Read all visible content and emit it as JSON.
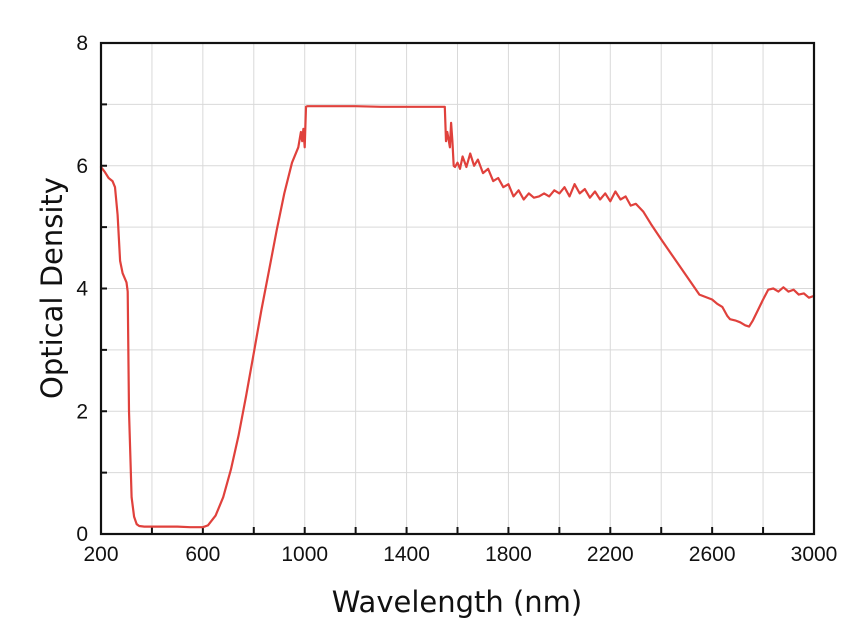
{
  "chart_data": {
    "type": "line",
    "title": "",
    "xlabel": "Wavelength (nm)",
    "ylabel": "Optical Density",
    "xlim": [
      200,
      3000
    ],
    "ylim": [
      0,
      8
    ],
    "x_tick_labels": [
      "200",
      "600",
      "1000",
      "1400",
      "1800",
      "2200",
      "2600",
      "3000"
    ],
    "y_tick_labels": [
      "0",
      "2",
      "4",
      "6",
      "8"
    ],
    "grid": true,
    "legend": "none",
    "line_color": "#e0413c",
    "series": [
      {
        "name": "Optical Density",
        "x": [
          200,
          215,
          230,
          245,
          255,
          265,
          275,
          285,
          295,
          300,
          305,
          310,
          320,
          330,
          340,
          350,
          370,
          400,
          450,
          500,
          550,
          600,
          620,
          650,
          680,
          710,
          740,
          770,
          800,
          830,
          860,
          890,
          920,
          950,
          975,
          985,
          990,
          995,
          1000,
          1005,
          1010,
          1020,
          1100,
          1200,
          1300,
          1400,
          1500,
          1550,
          1555,
          1560,
          1570,
          1575,
          1580,
          1585,
          1590,
          1600,
          1610,
          1620,
          1635,
          1650,
          1665,
          1680,
          1700,
          1720,
          1740,
          1760,
          1780,
          1800,
          1820,
          1840,
          1860,
          1880,
          1900,
          1920,
          1940,
          1960,
          1980,
          2000,
          2020,
          2040,
          2060,
          2080,
          2100,
          2120,
          2140,
          2160,
          2180,
          2200,
          2220,
          2240,
          2260,
          2280,
          2300,
          2330,
          2360,
          2400,
          2450,
          2500,
          2550,
          2600,
          2620,
          2640,
          2660,
          2670,
          2690,
          2710,
          2730,
          2745,
          2760,
          2780,
          2800,
          2820,
          2840,
          2860,
          2880,
          2900,
          2920,
          2940,
          2960,
          2980,
          3000
        ],
        "values": [
          5.98,
          5.9,
          5.8,
          5.75,
          5.65,
          5.2,
          4.45,
          4.25,
          4.15,
          4.1,
          3.95,
          2.0,
          0.6,
          0.28,
          0.16,
          0.13,
          0.12,
          0.12,
          0.12,
          0.12,
          0.11,
          0.11,
          0.14,
          0.3,
          0.6,
          1.05,
          1.6,
          2.25,
          2.95,
          3.65,
          4.3,
          4.95,
          5.55,
          6.05,
          6.3,
          6.55,
          6.4,
          6.6,
          6.3,
          6.96,
          6.97,
          6.97,
          6.97,
          6.97,
          6.96,
          6.96,
          6.96,
          6.96,
          6.4,
          6.55,
          6.3,
          6.7,
          6.4,
          6.0,
          5.98,
          6.05,
          5.95,
          6.15,
          5.98,
          6.2,
          6.0,
          6.1,
          5.88,
          5.95,
          5.75,
          5.8,
          5.65,
          5.7,
          5.5,
          5.6,
          5.45,
          5.55,
          5.48,
          5.5,
          5.55,
          5.5,
          5.6,
          5.55,
          5.65,
          5.5,
          5.7,
          5.55,
          5.62,
          5.48,
          5.58,
          5.45,
          5.55,
          5.42,
          5.58,
          5.45,
          5.5,
          5.35,
          5.38,
          5.25,
          5.05,
          4.8,
          4.5,
          4.2,
          3.9,
          3.82,
          3.75,
          3.7,
          3.55,
          3.5,
          3.48,
          3.45,
          3.4,
          3.38,
          3.48,
          3.65,
          3.82,
          3.98,
          4.0,
          3.95,
          4.02,
          3.95,
          3.98,
          3.9,
          3.92,
          3.85,
          3.88
        ]
      }
    ]
  }
}
